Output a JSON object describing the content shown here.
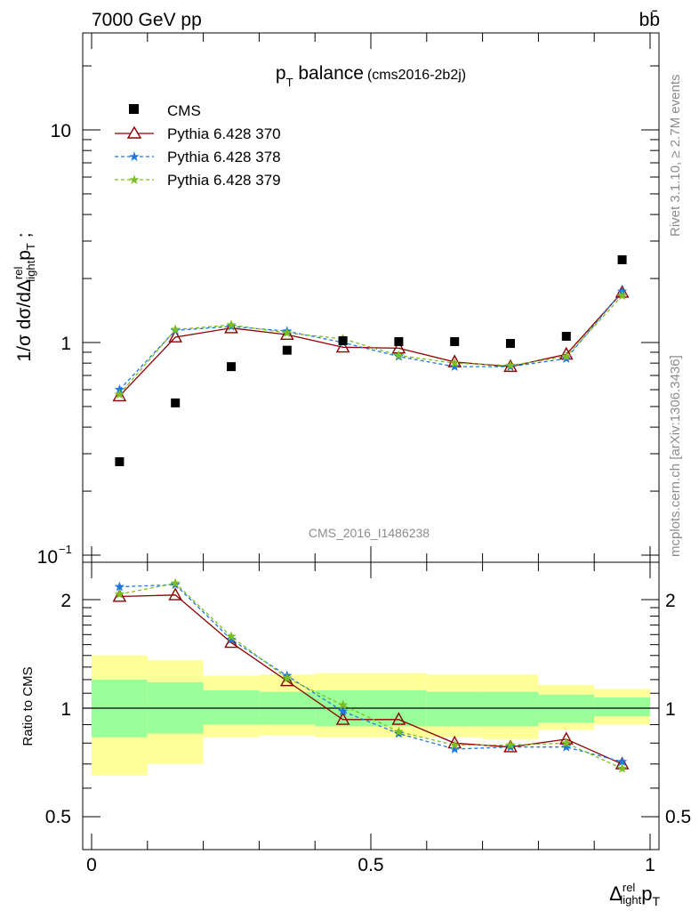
{
  "header": {
    "energy_label": "7000 GeV pp",
    "process_label": "bb̄",
    "plot_title": "p",
    "plot_title_sub": "T",
    "plot_title_rest": " balance",
    "plot_title_tag": "(cms2016-2b2j)",
    "analysis_id": "CMS_2016_I1486238",
    "side_label_top": "Rivet 3.1.10, ≥ 2.7M events",
    "side_label_bottom": "mcplots.cern.ch [arXiv:1306.3436]"
  },
  "axes": {
    "main_ylabel_a": "1/σ dσ/dΔ",
    "main_ylabel_sup": "rel",
    "main_ylabel_sub": "light",
    "main_ylabel_b": "p",
    "main_ylabel_c": "T",
    "main_ylabel_d": " ;",
    "ratio_ylabel": "Ratio to CMS",
    "xlabel_a": "Δ",
    "xlabel_sup": "rel",
    "xlabel_sub": "light",
    "xlabel_b": "p",
    "xlabel_c": "T",
    "main_tick_labels": [
      "10",
      "1",
      "10",
      "−1"
    ],
    "ratio_tick_labels": [
      "2",
      "1",
      "0.5"
    ],
    "x_tick_labels": [
      "0",
      "0.5",
      "1"
    ]
  },
  "colors": {
    "cms": "#000000",
    "pythia370": "#8b0000",
    "pythia378": "#1e78dc",
    "pythia379": "#7cbd23",
    "band_inner": "#99ff99",
    "band_outer": "#ffff99"
  },
  "chart_data": [
    {
      "type": "scatter",
      "panel": "main",
      "y_scale": "log",
      "xlim": [
        -0.02,
        1.02
      ],
      "ylim": [
        0.09,
        30
      ],
      "x": [
        0.05,
        0.15,
        0.25,
        0.35,
        0.45,
        0.55,
        0.65,
        0.75,
        0.85,
        0.95
      ],
      "series": [
        {
          "name": "CMS",
          "marker": "square",
          "values": [
            0.275,
            0.52,
            0.77,
            0.92,
            1.02,
            1.01,
            1.01,
            0.99,
            1.07,
            2.45
          ]
        },
        {
          "name": "Pythia 6.428 370",
          "marker": "triangle",
          "line": "solid",
          "values": [
            0.56,
            1.06,
            1.17,
            1.09,
            0.95,
            0.94,
            0.81,
            0.77,
            0.88,
            1.72
          ]
        },
        {
          "name": "Pythia 6.428 378",
          "marker": "star",
          "line": "dashed",
          "values": [
            0.6,
            1.14,
            1.19,
            1.13,
            1.0,
            0.86,
            0.77,
            0.77,
            0.84,
            1.74
          ]
        },
        {
          "name": "Pythia 6.428 379",
          "marker": "star",
          "line": "dashed",
          "values": [
            0.57,
            1.15,
            1.21,
            1.11,
            1.04,
            0.87,
            0.8,
            0.78,
            0.86,
            1.66
          ]
        }
      ]
    },
    {
      "type": "line",
      "panel": "ratio",
      "y_scale": "log",
      "xlim": [
        -0.02,
        1.02
      ],
      "ylim": [
        0.43,
        2.45
      ],
      "x": [
        0.05,
        0.15,
        0.25,
        0.35,
        0.45,
        0.55,
        0.65,
        0.75,
        0.85,
        0.95
      ],
      "bands": {
        "bin_edges": [
          0.0,
          0.1,
          0.2,
          0.3,
          0.4,
          0.5,
          0.6,
          0.7,
          0.8,
          0.9,
          1.0
        ],
        "inner_low": [
          0.83,
          0.85,
          0.9,
          0.9,
          0.89,
          0.89,
          0.89,
          0.89,
          0.91,
          0.95
        ],
        "inner_high": [
          1.2,
          1.18,
          1.12,
          1.11,
          1.12,
          1.12,
          1.11,
          1.11,
          1.09,
          1.07
        ],
        "outer_low": [
          0.65,
          0.7,
          0.83,
          0.84,
          0.83,
          0.83,
          0.83,
          0.82,
          0.87,
          0.9
        ],
        "outer_high": [
          1.4,
          1.36,
          1.23,
          1.24,
          1.25,
          1.25,
          1.24,
          1.24,
          1.16,
          1.13
        ]
      },
      "series": [
        {
          "name": "Pythia 6.428 370",
          "marker": "triangle",
          "line": "solid",
          "values": [
            2.04,
            2.06,
            1.52,
            1.19,
            0.93,
            0.93,
            0.8,
            0.78,
            0.82,
            0.7
          ]
        },
        {
          "name": "Pythia 6.428 378",
          "marker": "star",
          "line": "dashed",
          "values": [
            2.17,
            2.2,
            1.55,
            1.23,
            0.98,
            0.85,
            0.77,
            0.78,
            0.78,
            0.71
          ]
        },
        {
          "name": "Pythia 6.428 379",
          "marker": "star",
          "line": "dashed",
          "values": [
            2.07,
            2.22,
            1.58,
            1.21,
            1.02,
            0.86,
            0.79,
            0.79,
            0.8,
            0.68
          ]
        }
      ]
    }
  ]
}
